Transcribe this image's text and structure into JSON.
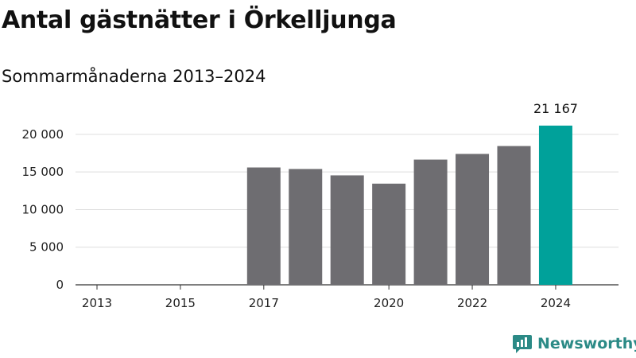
{
  "chart_data": {
    "type": "bar",
    "title": "Antal gästnätter i Örkelljunga",
    "subtitle": "Sommarmånaderna 2013–2024",
    "categories": [
      "2013",
      "2014",
      "2015",
      "2016",
      "2017",
      "2018",
      "2019",
      "2020",
      "2021",
      "2022",
      "2023",
      "2024"
    ],
    "values": [
      null,
      null,
      null,
      null,
      15600,
      15400,
      14550,
      13450,
      16650,
      17400,
      18450,
      21167
    ],
    "x_tick_labels": [
      "2013",
      "2015",
      "2017",
      "2020",
      "2022",
      "2024"
    ],
    "y_ticks": [
      0,
      5000,
      10000,
      15000,
      20000
    ],
    "y_tick_labels": [
      "0",
      "5 000",
      "10 000",
      "15 000",
      "20 000"
    ],
    "ylim": [
      0,
      22000
    ],
    "grid": true,
    "highlight": {
      "category": "2024",
      "label": "21 167"
    },
    "colors": {
      "bar": "#6e6d71",
      "highlight": "#00a19a",
      "grid": "#dddddd",
      "axis": "#333333"
    },
    "xlabel": "",
    "ylabel": ""
  },
  "brand": {
    "name": "Newsworthy",
    "icon": "bar-chart-speech-icon",
    "color": "#2b8a86"
  }
}
